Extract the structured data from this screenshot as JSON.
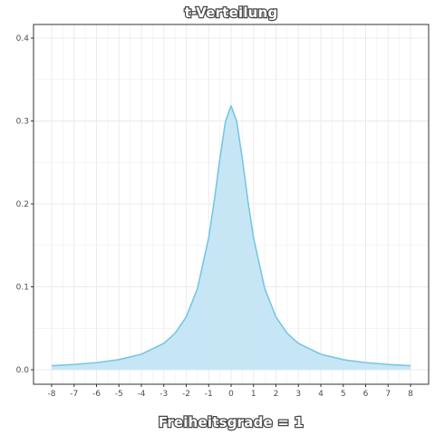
{
  "chart_data": {
    "type": "area",
    "title": "t-Verteilung",
    "xlabel": "Freiheitsgrade = 1",
    "ylabel": "",
    "distribution": "Student t",
    "degrees_of_freedom": 1,
    "xlim": [
      -8,
      8
    ],
    "ylim": [
      0,
      0.4
    ],
    "x_ticks": [
      "-8",
      "-7",
      "-6",
      "-5",
      "-4",
      "-3",
      "-2",
      "-1",
      "0",
      "1",
      "2",
      "3",
      "4",
      "5",
      "6",
      "7",
      "8"
    ],
    "y_ticks": [
      "0.0",
      "0.1",
      "0.2",
      "0.3",
      "0.4"
    ],
    "x": [
      -8,
      -7,
      -6,
      -5,
      -4,
      -3,
      -2.5,
      -2,
      -1.5,
      -1,
      -0.75,
      -0.5,
      -0.25,
      0,
      0.25,
      0.5,
      0.75,
      1,
      1.5,
      2,
      2.5,
      3,
      4,
      5,
      6,
      7,
      8
    ],
    "y": [
      0.0049,
      0.0064,
      0.0086,
      0.0122,
      0.0187,
      0.0318,
      0.0439,
      0.0637,
      0.0979,
      0.1592,
      0.2037,
      0.2546,
      0.2996,
      0.3183,
      0.2996,
      0.2546,
      0.2037,
      0.1592,
      0.0979,
      0.0637,
      0.0439,
      0.0318,
      0.0187,
      0.0122,
      0.0086,
      0.0064,
      0.0049
    ],
    "grid": true,
    "legend": "none",
    "colors": {
      "fill": "#c4e5f4",
      "line": "#77c7e3",
      "grid": "#ebebeb",
      "panel_border": "#333333"
    }
  }
}
